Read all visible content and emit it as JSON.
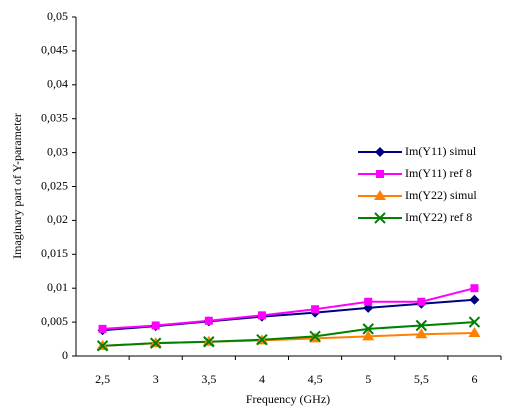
{
  "chart_data": {
    "type": "line",
    "y_label": "Imaginary part of Y-parameter",
    "x_label": "Frequency (GHz)",
    "categories": [
      "2,5",
      "3",
      "3,5",
      "4",
      "4,5",
      "5",
      "5,5",
      "6"
    ],
    "series": [
      {
        "name": "Im(Y11) simul",
        "color": "#000080",
        "marker": "diamond",
        "values": [
          0.0038,
          0.0044,
          0.0051,
          0.0058,
          0.0064,
          0.0071,
          0.0077,
          0.0083
        ]
      },
      {
        "name": "Im(Y11) ref 8",
        "color": "#ff00ff",
        "marker": "square",
        "values": [
          0.004,
          0.0045,
          0.0052,
          0.006,
          0.0069,
          0.008,
          0.008,
          0.01
        ]
      },
      {
        "name": "Im(Y22) simul",
        "color": "#ff8000",
        "marker": "triangle",
        "values": [
          0.0015,
          0.0019,
          0.0021,
          0.0023,
          0.0026,
          0.0029,
          0.0032,
          0.0034
        ]
      },
      {
        "name": "Im(Y22) ref 8",
        "color": "#008000",
        "marker": "cross",
        "values": [
          0.0015,
          0.0019,
          0.0021,
          0.0024,
          0.0029,
          0.004,
          0.0045,
          0.005
        ]
      }
    ],
    "ylim": [
      0,
      0.05
    ],
    "yticks": [
      0,
      {
        "value": 0.005,
        "label": "0,005"
      },
      {
        "value": 0.01,
        "label": "0,01"
      },
      {
        "value": 0.015,
        "label": "0,015"
      },
      {
        "value": 0.02,
        "label": "0,02"
      },
      {
        "value": 0.025,
        "label": "0,025"
      },
      {
        "value": 0.03,
        "label": "0,03"
      },
      {
        "value": 0.035,
        "label": "0,035"
      },
      {
        "value": 0.04,
        "label": "0,04"
      },
      {
        "value": 0.045,
        "label": "0,045"
      },
      {
        "value": 0.05,
        "label": "0,05"
      }
    ],
    "grid": false,
    "legend": "right"
  }
}
